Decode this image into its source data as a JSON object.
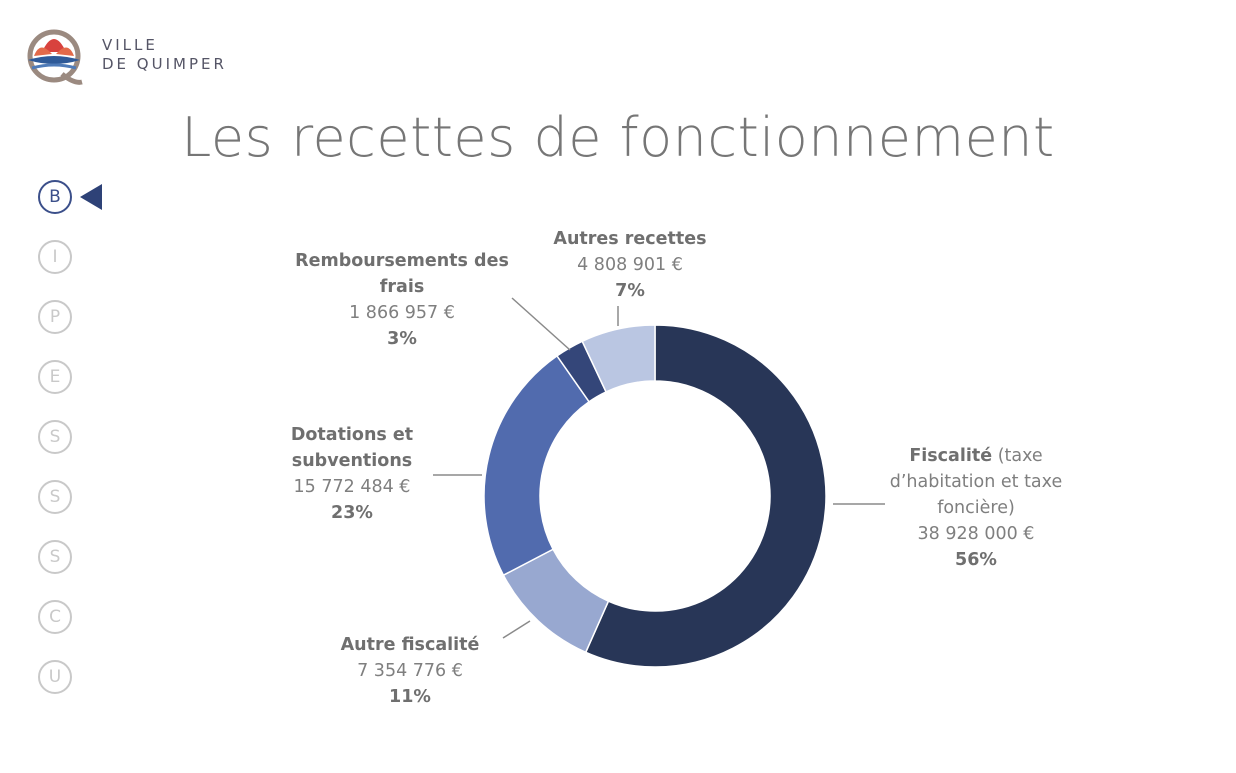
{
  "logo": {
    "line1": "VILLE",
    "line2": "DE QUIMPER"
  },
  "title": "Les recettes de fonctionnement",
  "nav": {
    "items": [
      {
        "letter": "B",
        "active": true
      },
      {
        "letter": "I",
        "active": false
      },
      {
        "letter": "P",
        "active": false
      },
      {
        "letter": "E",
        "active": false
      },
      {
        "letter": "S",
        "active": false
      },
      {
        "letter": "S",
        "active": false
      },
      {
        "letter": "S",
        "active": false
      },
      {
        "letter": "C",
        "active": false
      },
      {
        "letter": "U",
        "active": false
      }
    ]
  },
  "chart_data": {
    "type": "pie",
    "donut": true,
    "slices": [
      {
        "name": "Fiscalité",
        "note": "(taxe d’habitation et taxe foncière)",
        "value": 38928000,
        "value_label": "38 928 000 €",
        "percent_label": "56%",
        "color": "#283657"
      },
      {
        "name": "Autre fiscalité",
        "value": 7354776,
        "value_label": "7 354 776 €",
        "percent_label": "11%",
        "color": "#98a8d0"
      },
      {
        "name": "Dotations et subventions",
        "value": 15772484,
        "value_label": "15 772 484 €",
        "percent_label": "23%",
        "color": "#516bae"
      },
      {
        "name": "Remboursements des frais",
        "value": 1866957,
        "value_label": "1 866 957 €",
        "percent_label": "3%",
        "color": "#344679"
      },
      {
        "name": "Autres recettes",
        "value": 4808901,
        "value_label": "4 808 901 €",
        "percent_label": "7%",
        "color": "#bac6e2"
      }
    ]
  }
}
